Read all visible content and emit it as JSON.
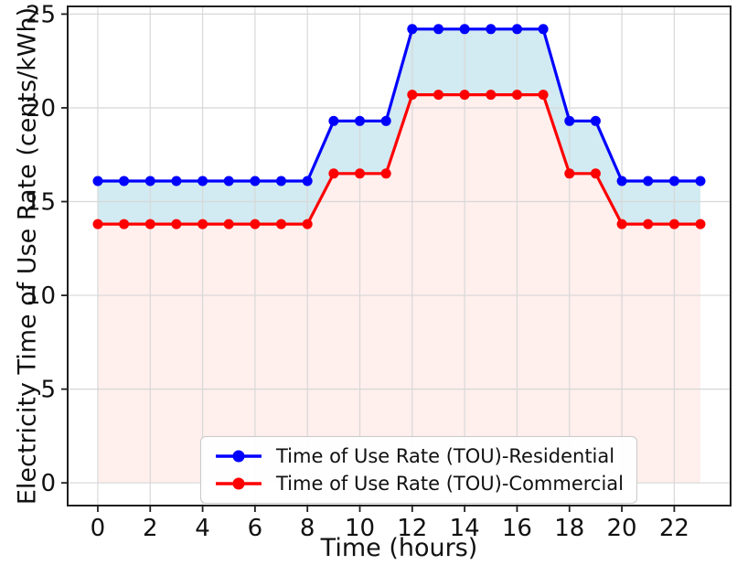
{
  "chart_data": {
    "type": "line",
    "title": "",
    "xlabel": "Time (hours)",
    "ylabel": "Electricity Time of Use Rate (cents/kWh)",
    "x": [
      0,
      1,
      2,
      3,
      4,
      5,
      6,
      7,
      8,
      9,
      10,
      11,
      12,
      13,
      14,
      15,
      16,
      17,
      18,
      19,
      20,
      21,
      22,
      23
    ],
    "series": [
      {
        "name": "Time of Use Rate (TOU)-Residential",
        "color": "#0000ff",
        "marker": "circle",
        "values": [
          16.1,
          16.1,
          16.1,
          16.1,
          16.1,
          16.1,
          16.1,
          16.1,
          16.1,
          19.3,
          19.3,
          19.3,
          24.2,
          24.2,
          24.2,
          24.2,
          24.2,
          24.2,
          19.3,
          19.3,
          16.1,
          16.1,
          16.1,
          16.1
        ]
      },
      {
        "name": "Time of Use Rate (TOU)-Commercial",
        "color": "#ff0000",
        "marker": "circle",
        "values": [
          13.8,
          13.8,
          13.8,
          13.8,
          13.8,
          13.8,
          13.8,
          13.8,
          13.8,
          16.5,
          16.5,
          16.5,
          20.7,
          20.7,
          20.7,
          20.7,
          20.7,
          20.7,
          16.5,
          16.5,
          13.8,
          13.8,
          13.8,
          13.8
        ]
      }
    ],
    "fills": [
      {
        "between": [
          "residential",
          "commercial"
        ],
        "color": "rgba(173,216,230,0.55)"
      },
      {
        "between": [
          "commercial",
          "zero"
        ],
        "color": "rgba(255,228,225,0.6)"
      }
    ],
    "xticks": [
      0,
      2,
      4,
      6,
      8,
      10,
      12,
      14,
      16,
      18,
      20,
      22
    ],
    "yticks": [
      0,
      5,
      10,
      15,
      20,
      25
    ],
    "xlim": [
      -1.15,
      24.15
    ],
    "ylim": [
      -1.21,
      25.41
    ],
    "grid": true,
    "grid_color": "#d8d8d8",
    "spine_color": "#1f1f1f",
    "tick_label_color": "#111111",
    "legend_position": "lower center"
  }
}
